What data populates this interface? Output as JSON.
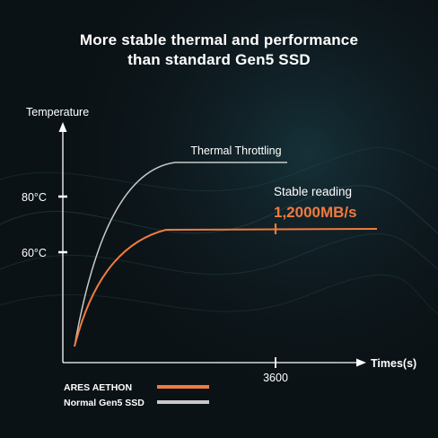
{
  "title_line1": "More stable thermal and performance",
  "title_line2": "than standard Gen5 SSD",
  "colors": {
    "ares": "#f07b3f",
    "normal": "#c9c9c9",
    "background": "#0b1216"
  },
  "chart_data": {
    "type": "line",
    "ylabel": "Temperature",
    "xlabel": "Times(s)",
    "y_ticks": [
      {
        "label": "80°C",
        "value": 80
      },
      {
        "label": "60°C",
        "value": 60
      }
    ],
    "x_ticks": [
      {
        "label": "3600",
        "value": 3600
      }
    ],
    "xlim": [
      0,
      5500
    ],
    "ylim": [
      0,
      100
    ],
    "series": [
      {
        "name": "ARES AETHON",
        "color": "#f07b3f",
        "points": [
          [
            0,
            3
          ],
          [
            500,
            40
          ],
          [
            1000,
            56
          ],
          [
            1500,
            61
          ],
          [
            2000,
            62
          ],
          [
            3600,
            62
          ],
          [
            5300,
            62
          ]
        ]
      },
      {
        "name": "Normal Gen5 SSD",
        "color": "#c9c9c9",
        "points": [
          [
            0,
            3
          ],
          [
            500,
            58
          ],
          [
            1000,
            80
          ],
          [
            1500,
            89
          ],
          [
            2000,
            92
          ],
          [
            3000,
            93
          ],
          [
            3600,
            93
          ]
        ]
      }
    ],
    "annotations": {
      "throttling": "Thermal Throttling",
      "stable_reading": "Stable reading",
      "stable_value": "1,2000MB/s"
    }
  }
}
